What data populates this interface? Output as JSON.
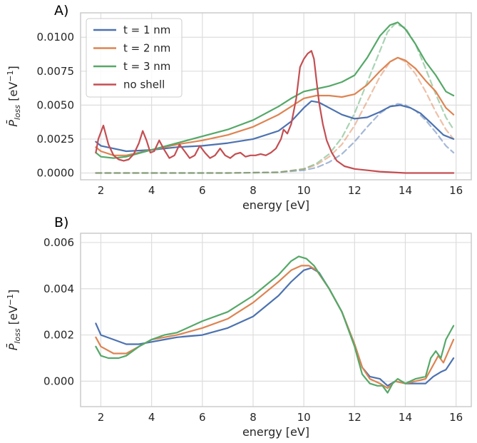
{
  "figure": {
    "panel_a_label": "A)",
    "panel_b_label": "B)"
  },
  "chart_data": [
    {
      "type": "line",
      "xlabel": "energy [eV]",
      "ylabel": "P̄loss [eV⁻¹]",
      "ylabel_parts": {
        "base": "P̄",
        "sub": "loss",
        "unit": " [eV",
        "exp": "−1",
        "close": "]"
      },
      "xlim": [
        1.2,
        16.6
      ],
      "ylim": [
        -0.0005,
        0.0118
      ],
      "xticks": [
        2,
        4,
        6,
        8,
        10,
        12,
        14,
        16
      ],
      "xtick_labels": [
        "2",
        "4",
        "6",
        "8",
        "10",
        "12",
        "14",
        "16"
      ],
      "yticks": [
        0,
        0.0025,
        0.005,
        0.0075,
        0.01
      ],
      "ytick_labels": [
        "0.0000",
        "0.0025",
        "0.0050",
        "0.0075",
        "0.0100"
      ],
      "grid": true,
      "legend_position": "top-left",
      "series": [
        {
          "name": "t = 1 nm",
          "color": "#4c72b0",
          "style": "solid",
          "x": [
            1.8,
            2.0,
            2.5,
            3.0,
            4.0,
            5.0,
            6.0,
            7.0,
            8.0,
            9.0,
            9.5,
            10.0,
            10.3,
            10.6,
            11.0,
            11.5,
            12.0,
            12.5,
            13.0,
            13.4,
            13.8,
            14.2,
            14.6,
            15.0,
            15.5,
            15.9
          ],
          "y": [
            0.0023,
            0.002,
            0.0018,
            0.0016,
            0.0017,
            0.0019,
            0.002,
            0.0022,
            0.0025,
            0.0031,
            0.0038,
            0.0048,
            0.0053,
            0.0052,
            0.0048,
            0.0043,
            0.004,
            0.0041,
            0.0045,
            0.0049,
            0.005,
            0.0048,
            0.0044,
            0.0037,
            0.0028,
            0.0025
          ]
        },
        {
          "name": "t = 2 nm",
          "color": "#dd8452",
          "style": "solid",
          "x": [
            1.8,
            2.0,
            2.5,
            3.0,
            4.0,
            5.0,
            6.0,
            7.0,
            8.0,
            9.0,
            9.5,
            10.0,
            10.5,
            11.0,
            11.5,
            12.0,
            12.5,
            13.0,
            13.4,
            13.7,
            14.0,
            14.4,
            14.8,
            15.2,
            15.6,
            15.9
          ],
          "y": [
            0.0019,
            0.0016,
            0.0013,
            0.0013,
            0.0017,
            0.0021,
            0.0024,
            0.0028,
            0.0034,
            0.0043,
            0.0049,
            0.0055,
            0.0057,
            0.0057,
            0.0056,
            0.0058,
            0.0065,
            0.0075,
            0.0082,
            0.0085,
            0.0083,
            0.0077,
            0.0068,
            0.006,
            0.0048,
            0.0043
          ]
        },
        {
          "name": "t = 3 nm",
          "color": "#55a868",
          "style": "solid",
          "x": [
            1.8,
            2.0,
            2.5,
            3.0,
            4.0,
            5.0,
            6.0,
            7.0,
            8.0,
            9.0,
            9.5,
            10.0,
            10.5,
            11.0,
            11.5,
            12.0,
            12.5,
            13.0,
            13.4,
            13.7,
            14.0,
            14.4,
            14.8,
            15.2,
            15.6,
            15.9
          ],
          "y": [
            0.0015,
            0.0012,
            0.0011,
            0.0012,
            0.0017,
            0.0022,
            0.0027,
            0.0032,
            0.0039,
            0.0049,
            0.0055,
            0.006,
            0.0062,
            0.0064,
            0.0067,
            0.0072,
            0.0085,
            0.0101,
            0.0109,
            0.0111,
            0.0106,
            0.0095,
            0.0082,
            0.0072,
            0.006,
            0.0057
          ]
        },
        {
          "name": "no shell",
          "color": "#c44e52",
          "style": "solid",
          "x": [
            1.8,
            1.9,
            2.1,
            2.3,
            2.5,
            2.7,
            2.9,
            3.1,
            3.3,
            3.5,
            3.65,
            3.8,
            3.95,
            4.1,
            4.3,
            4.5,
            4.7,
            4.9,
            5.1,
            5.3,
            5.5,
            5.7,
            5.9,
            6.1,
            6.3,
            6.5,
            6.7,
            6.9,
            7.1,
            7.3,
            7.5,
            7.7,
            7.9,
            8.1,
            8.3,
            8.5,
            8.7,
            8.9,
            9.1,
            9.2,
            9.35,
            9.5,
            9.7,
            9.85,
            10.0,
            10.15,
            10.3,
            10.4,
            10.5,
            10.6,
            10.75,
            10.9,
            11.1,
            11.3,
            11.6,
            12.0,
            12.5,
            13.0,
            14.0,
            15.0,
            15.9
          ],
          "y": [
            0.0015,
            0.0025,
            0.0035,
            0.0021,
            0.0013,
            0.001,
            0.0009,
            0.001,
            0.0014,
            0.0022,
            0.0031,
            0.0024,
            0.0015,
            0.0016,
            0.0024,
            0.0017,
            0.0011,
            0.0013,
            0.0021,
            0.0016,
            0.0011,
            0.0013,
            0.002,
            0.0015,
            0.0011,
            0.0013,
            0.0018,
            0.0013,
            0.0011,
            0.0014,
            0.0015,
            0.0012,
            0.0013,
            0.0013,
            0.0014,
            0.0013,
            0.0015,
            0.0018,
            0.0025,
            0.0032,
            0.0029,
            0.0036,
            0.0055,
            0.0078,
            0.0084,
            0.0088,
            0.009,
            0.0084,
            0.0068,
            0.0052,
            0.0036,
            0.0024,
            0.0015,
            0.0009,
            0.0005,
            0.0003,
            0.0002,
            0.0001,
            0.0,
            0.0,
            0.0
          ]
        },
        {
          "name": "",
          "color": "#4c72b0",
          "style": "dashed",
          "alpha": 0.5,
          "x": [
            1.8,
            7.0,
            9.0,
            10.0,
            10.5,
            11.0,
            11.5,
            12.0,
            12.5,
            13.0,
            13.4,
            13.7,
            14.0,
            14.4,
            14.8,
            15.2,
            15.6,
            15.9
          ],
          "y": [
            0.0,
            0.0,
            5e-05,
            0.0002,
            0.0004,
            0.0008,
            0.0014,
            0.0023,
            0.0034,
            0.0044,
            0.0049,
            0.0051,
            0.005,
            0.0046,
            0.0039,
            0.003,
            0.002,
            0.0015
          ]
        },
        {
          "name": "",
          "color": "#dd8452",
          "style": "dashed",
          "alpha": 0.5,
          "x": [
            1.8,
            7.0,
            9.0,
            10.0,
            10.5,
            11.0,
            11.5,
            12.0,
            12.5,
            13.0,
            13.4,
            13.7,
            14.0,
            14.4,
            14.8,
            15.2,
            15.6,
            15.9
          ],
          "y": [
            0.0,
            0.0,
            5e-05,
            0.0003,
            0.0006,
            0.0012,
            0.0021,
            0.0035,
            0.0053,
            0.0071,
            0.0082,
            0.0085,
            0.0082,
            0.0073,
            0.006,
            0.0045,
            0.0032,
            0.0025
          ]
        },
        {
          "name": "",
          "color": "#55a868",
          "style": "dashed",
          "alpha": 0.5,
          "x": [
            1.8,
            7.0,
            9.0,
            10.0,
            10.5,
            11.0,
            11.5,
            12.0,
            12.5,
            13.0,
            13.3,
            13.6,
            14.0,
            14.4,
            14.8,
            15.2,
            15.6,
            15.9
          ],
          "y": [
            0.0,
            0.0,
            5e-05,
            0.0003,
            0.0007,
            0.0014,
            0.0026,
            0.0044,
            0.0067,
            0.009,
            0.0104,
            0.011,
            0.0107,
            0.0095,
            0.0077,
            0.0058,
            0.0041,
            0.0032
          ]
        }
      ]
    },
    {
      "type": "line",
      "xlabel": "energy [eV]",
      "ylabel": "P̄loss [eV⁻¹]",
      "ylabel_parts": {
        "base": "P̄",
        "sub": "loss",
        "unit": " [eV",
        "exp": "−1",
        "close": "]"
      },
      "xlim": [
        1.2,
        16.6
      ],
      "ylim": [
        -0.0011,
        0.0064
      ],
      "xticks": [
        2,
        4,
        6,
        8,
        10,
        12,
        14,
        16
      ],
      "xtick_labels": [
        "2",
        "4",
        "6",
        "8",
        "10",
        "12",
        "14",
        "16"
      ],
      "yticks": [
        0,
        0.002,
        0.004,
        0.006
      ],
      "ytick_labels": [
        "0.000",
        "0.002",
        "0.004",
        "0.006"
      ],
      "grid": true,
      "series": [
        {
          "name": "t = 1 nm",
          "color": "#4c72b0",
          "style": "solid",
          "x": [
            1.8,
            2.0,
            2.5,
            3.0,
            3.5,
            4.0,
            4.5,
            5.0,
            6.0,
            7.0,
            8.0,
            9.0,
            9.5,
            10.0,
            10.3,
            10.6,
            11.0,
            11.5,
            12.0,
            12.3,
            12.6,
            13.0,
            13.3,
            13.6,
            14.0,
            14.4,
            14.8,
            15.1,
            15.4,
            15.6,
            15.9
          ],
          "y": [
            0.0025,
            0.002,
            0.0018,
            0.0016,
            0.0016,
            0.0017,
            0.0018,
            0.0019,
            0.002,
            0.0023,
            0.0028,
            0.0037,
            0.0043,
            0.0048,
            0.0049,
            0.0047,
            0.004,
            0.003,
            0.0016,
            0.0006,
            0.0002,
            0.0001,
            -0.0002,
            0.0,
            -0.0001,
            -0.0001,
            -0.0001,
            0.0002,
            0.0004,
            0.0005,
            0.001
          ]
        },
        {
          "name": "t = 2 nm",
          "color": "#dd8452",
          "style": "solid",
          "x": [
            1.8,
            2.0,
            2.5,
            3.0,
            3.5,
            4.0,
            4.5,
            5.0,
            6.0,
            7.0,
            8.0,
            9.0,
            9.5,
            9.9,
            10.2,
            10.5,
            11.0,
            11.5,
            12.0,
            12.3,
            12.6,
            13.0,
            13.3,
            13.6,
            14.0,
            14.4,
            14.8,
            15.1,
            15.3,
            15.5,
            15.7,
            15.9
          ],
          "y": [
            0.0019,
            0.0015,
            0.0012,
            0.0012,
            0.0015,
            0.0018,
            0.0019,
            0.002,
            0.0023,
            0.0027,
            0.0034,
            0.0043,
            0.0048,
            0.005,
            0.005,
            0.0048,
            0.004,
            0.003,
            0.0016,
            0.0006,
            0.0001,
            -0.0001,
            -0.0003,
            0.0,
            -0.0001,
            0.0,
            0.0001,
            0.0007,
            0.0011,
            0.0008,
            0.0013,
            0.0018
          ]
        },
        {
          "name": "t = 3 nm",
          "color": "#55a868",
          "style": "solid",
          "x": [
            1.8,
            2.0,
            2.3,
            2.7,
            3.0,
            3.5,
            4.0,
            4.5,
            5.0,
            6.0,
            7.0,
            8.0,
            9.0,
            9.5,
            9.8,
            10.1,
            10.4,
            11.0,
            11.5,
            12.0,
            12.3,
            12.6,
            12.9,
            13.1,
            13.3,
            13.5,
            13.7,
            14.0,
            14.4,
            14.8,
            15.0,
            15.2,
            15.4,
            15.6,
            15.9
          ],
          "y": [
            0.0015,
            0.0011,
            0.001,
            0.001,
            0.0011,
            0.0015,
            0.0018,
            0.002,
            0.0021,
            0.0026,
            0.003,
            0.0037,
            0.0046,
            0.0052,
            0.0054,
            0.0053,
            0.005,
            0.004,
            0.003,
            0.0015,
            0.0003,
            -0.0001,
            -0.0002,
            -0.0002,
            -0.0005,
            -0.0001,
            0.0001,
            -0.0001,
            0.0001,
            0.0002,
            0.001,
            0.0013,
            0.001,
            0.0018,
            0.0024
          ]
        }
      ]
    }
  ]
}
